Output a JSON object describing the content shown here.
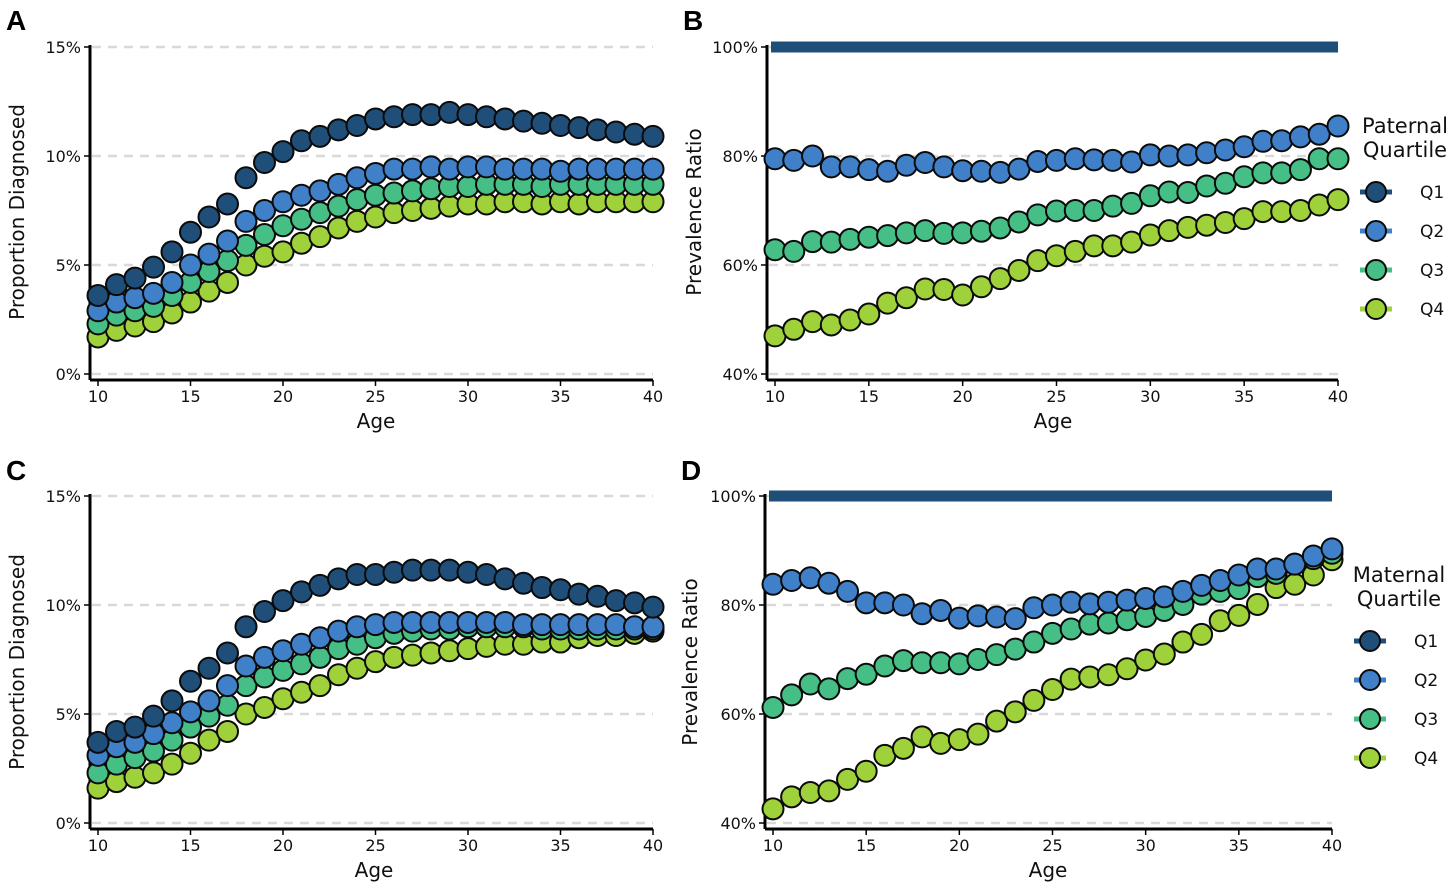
{
  "colors": {
    "Q1": "#1f4e79",
    "Q2": "#3f80c8",
    "Q3": "#46bf86",
    "Q4": "#9fd13a",
    "grid": "#d9d9d9"
  },
  "chart_data": [
    {
      "type": "scatter",
      "panel": "A",
      "xlabel": "Age",
      "ylabel": "Proportion Diagnosed",
      "xlim": [
        10,
        40
      ],
      "ylim": [
        0,
        15
      ],
      "xticks": [
        "10",
        "15",
        "20",
        "25",
        "30",
        "35",
        "40"
      ],
      "yticks": [
        "0%",
        "5%",
        "10%",
        "15%"
      ],
      "grid": "horizontal dashed",
      "x": [
        10,
        11,
        12,
        13,
        14,
        15,
        16,
        17,
        18,
        19,
        20,
        21,
        22,
        23,
        24,
        25,
        26,
        27,
        28,
        29,
        30,
        31,
        32,
        33,
        34,
        35,
        36,
        37,
        38,
        39,
        40
      ],
      "series": [
        {
          "name": "Q1",
          "values": [
            3.6,
            4.1,
            4.4,
            4.9,
            5.6,
            6.5,
            7.2,
            7.8,
            9.0,
            9.7,
            10.2,
            10.7,
            10.9,
            11.2,
            11.4,
            11.7,
            11.8,
            11.9,
            11.9,
            12.0,
            11.9,
            11.8,
            11.7,
            11.6,
            11.5,
            11.4,
            11.3,
            11.2,
            11.1,
            11.0,
            10.9
          ]
        },
        {
          "name": "Q2",
          "values": [
            2.9,
            3.3,
            3.5,
            3.7,
            4.2,
            5.0,
            5.5,
            6.1,
            7.0,
            7.5,
            7.9,
            8.2,
            8.4,
            8.7,
            9.0,
            9.2,
            9.4,
            9.4,
            9.5,
            9.4,
            9.5,
            9.5,
            9.4,
            9.4,
            9.4,
            9.3,
            9.4,
            9.4,
            9.4,
            9.4,
            9.4
          ]
        },
        {
          "name": "Q3",
          "values": [
            2.3,
            2.7,
            2.9,
            3.1,
            3.6,
            4.2,
            4.7,
            5.2,
            5.9,
            6.4,
            6.8,
            7.1,
            7.4,
            7.7,
            8.0,
            8.2,
            8.3,
            8.4,
            8.5,
            8.6,
            8.6,
            8.7,
            8.7,
            8.7,
            8.6,
            8.7,
            8.7,
            8.7,
            8.7,
            8.7,
            8.7
          ]
        },
        {
          "name": "Q4",
          "values": [
            1.7,
            2.0,
            2.2,
            2.4,
            2.8,
            3.3,
            3.8,
            4.2,
            5.0,
            5.4,
            5.6,
            6.0,
            6.3,
            6.7,
            7.0,
            7.2,
            7.4,
            7.5,
            7.6,
            7.7,
            7.8,
            7.8,
            7.9,
            7.9,
            7.8,
            7.9,
            7.8,
            7.9,
            7.9,
            7.9,
            7.9
          ]
        }
      ]
    },
    {
      "type": "scatter",
      "panel": "B",
      "xlabel": "Age",
      "ylabel": "Prevalence Ratio",
      "xlim": [
        10,
        40
      ],
      "ylim": [
        40,
        100
      ],
      "xticks": [
        "10",
        "15",
        "20",
        "25",
        "30",
        "35",
        "40"
      ],
      "yticks": [
        "40%",
        "60%",
        "80%",
        "100%"
      ],
      "grid": "horizontal dashed",
      "legend": {
        "title_line1": "Paternal",
        "title_line2": "Quartile",
        "position": "right"
      },
      "x": [
        10,
        11,
        12,
        13,
        14,
        15,
        16,
        17,
        18,
        19,
        20,
        21,
        22,
        23,
        24,
        25,
        26,
        27,
        28,
        29,
        30,
        31,
        32,
        33,
        34,
        35,
        36,
        37,
        38,
        39,
        40
      ],
      "series": [
        {
          "name": "Q1",
          "reference_line": 100
        },
        {
          "name": "Q2",
          "values": [
            79.5,
            79.2,
            80.0,
            78.0,
            78.0,
            77.5,
            77.2,
            78.3,
            78.8,
            78.0,
            77.3,
            77.2,
            77.0,
            77.6,
            79.0,
            79.2,
            79.5,
            79.3,
            79.2,
            78.9,
            80.2,
            80.0,
            80.2,
            80.6,
            81.1,
            81.7,
            82.7,
            82.8,
            83.5,
            84.0,
            85.5
          ]
        },
        {
          "name": "Q3",
          "values": [
            62.8,
            62.5,
            64.3,
            64.2,
            64.7,
            65.1,
            65.4,
            65.9,
            66.3,
            65.8,
            65.9,
            66.2,
            66.8,
            67.9,
            69.2,
            69.9,
            70.0,
            70.0,
            70.8,
            71.3,
            72.7,
            73.4,
            73.3,
            74.5,
            75.0,
            76.2,
            76.9,
            76.9,
            77.5,
            79.5,
            79.5
          ]
        },
        {
          "name": "Q4",
          "values": [
            47.0,
            48.2,
            49.6,
            49.0,
            49.9,
            51.0,
            53.0,
            54.0,
            55.6,
            55.5,
            54.5,
            56.0,
            57.5,
            59.0,
            60.8,
            61.7,
            62.5,
            63.5,
            63.5,
            64.2,
            65.5,
            66.3,
            66.9,
            67.3,
            67.8,
            68.5,
            69.8,
            69.8,
            70.0,
            71.0,
            72.0
          ]
        }
      ]
    },
    {
      "type": "scatter",
      "panel": "C",
      "xlabel": "Age",
      "ylabel": "Proportion Diagnosed",
      "xlim": [
        10,
        40
      ],
      "ylim": [
        0,
        15
      ],
      "xticks": [
        "10",
        "15",
        "20",
        "25",
        "30",
        "35",
        "40"
      ],
      "yticks": [
        "0%",
        "5%",
        "10%",
        "15%"
      ],
      "grid": "horizontal dashed",
      "x": [
        10,
        11,
        12,
        13,
        14,
        15,
        16,
        17,
        18,
        19,
        20,
        21,
        22,
        23,
        24,
        25,
        26,
        27,
        28,
        29,
        30,
        31,
        32,
        33,
        34,
        35,
        36,
        37,
        38,
        39,
        40
      ],
      "series": [
        {
          "name": "Q1",
          "values": [
            3.7,
            4.2,
            4.4,
            4.9,
            5.6,
            6.5,
            7.1,
            7.8,
            9.0,
            9.7,
            10.2,
            10.6,
            10.9,
            11.2,
            11.4,
            11.4,
            11.5,
            11.6,
            11.6,
            11.6,
            11.5,
            11.4,
            11.2,
            11.0,
            10.8,
            10.7,
            10.5,
            10.4,
            10.2,
            10.1,
            9.9
          ]
        },
        {
          "name": "Q2",
          "values": [
            3.1,
            3.5,
            3.7,
            4.1,
            4.6,
            5.1,
            5.6,
            6.3,
            7.2,
            7.6,
            7.9,
            8.2,
            8.5,
            8.8,
            9.0,
            9.1,
            9.2,
            9.2,
            9.2,
            9.2,
            9.2,
            9.2,
            9.2,
            9.1,
            9.1,
            9.1,
            9.1,
            9.1,
            9.1,
            9.0,
            9.0
          ]
        },
        {
          "name": "Q3",
          "values": [
            2.3,
            2.7,
            3.0,
            3.3,
            3.8,
            4.4,
            4.9,
            5.4,
            6.3,
            6.7,
            7.0,
            7.3,
            7.6,
            8.0,
            8.2,
            8.5,
            8.7,
            8.8,
            8.9,
            8.9,
            9.0,
            9.0,
            9.0,
            9.0,
            8.9,
            8.9,
            8.9,
            8.9,
            8.9,
            8.9,
            8.9
          ]
        },
        {
          "name": "Q4",
          "values": [
            1.6,
            1.9,
            2.1,
            2.3,
            2.7,
            3.2,
            3.8,
            4.2,
            5.0,
            5.3,
            5.7,
            6.0,
            6.3,
            6.8,
            7.1,
            7.4,
            7.6,
            7.7,
            7.8,
            7.9,
            8.0,
            8.1,
            8.2,
            8.2,
            8.3,
            8.3,
            8.5,
            8.6,
            8.6,
            8.7,
            8.8
          ]
        }
      ]
    },
    {
      "type": "scatter",
      "panel": "D",
      "xlabel": "Age",
      "ylabel": "Prevalence Ratio",
      "xlim": [
        10,
        40
      ],
      "ylim": [
        40,
        100
      ],
      "xticks": [
        "10",
        "15",
        "20",
        "25",
        "30",
        "35",
        "40"
      ],
      "yticks": [
        "40%",
        "60%",
        "80%",
        "100%"
      ],
      "grid": "horizontal dashed",
      "legend": {
        "title_line1": "Maternal",
        "title_line2": "Quartile",
        "position": "right"
      },
      "x": [
        10,
        11,
        12,
        13,
        14,
        15,
        16,
        17,
        18,
        19,
        20,
        21,
        22,
        23,
        24,
        25,
        26,
        27,
        28,
        29,
        30,
        31,
        32,
        33,
        34,
        35,
        36,
        37,
        38,
        39,
        40
      ],
      "series": [
        {
          "name": "Q1",
          "reference_line": 100
        },
        {
          "name": "Q2",
          "values": [
            83.8,
            84.5,
            85.0,
            84.0,
            82.5,
            80.4,
            80.4,
            80.0,
            78.4,
            79.0,
            77.6,
            78.0,
            77.8,
            77.5,
            79.5,
            80.0,
            80.5,
            80.2,
            80.5,
            80.9,
            81.2,
            81.5,
            82.5,
            83.6,
            84.5,
            85.5,
            86.6,
            86.6,
            87.5,
            89.0,
            90.3
          ]
        },
        {
          "name": "Q3",
          "values": [
            61.2,
            63.5,
            65.5,
            64.6,
            66.5,
            67.3,
            68.8,
            69.8,
            69.4,
            69.4,
            69.2,
            70.0,
            70.9,
            71.9,
            73.2,
            74.8,
            75.6,
            76.5,
            76.7,
            77.3,
            77.9,
            79.0,
            80.1,
            82.0,
            82.5,
            83.0,
            85.2,
            85.8,
            87.5,
            88.5,
            89.5
          ]
        },
        {
          "name": "Q4",
          "values": [
            42.6,
            44.8,
            45.6,
            45.9,
            48.0,
            49.5,
            52.4,
            53.7,
            55.8,
            54.6,
            55.3,
            56.3,
            58.7,
            60.4,
            62.5,
            64.5,
            66.4,
            66.8,
            67.2,
            68.3,
            69.9,
            71.0,
            73.2,
            74.6,
            77.1,
            78.1,
            80.1,
            83.2,
            83.8,
            85.5,
            88.3
          ]
        }
      ]
    }
  ]
}
